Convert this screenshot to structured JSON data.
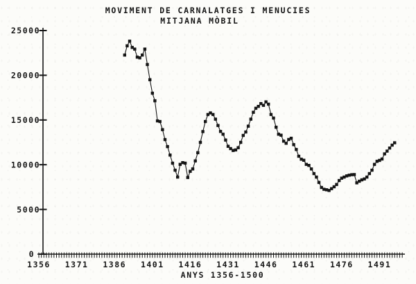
{
  "page": {
    "background": "#fcfcf9",
    "ink": "#161616"
  },
  "chart_data": {
    "type": "line",
    "title": "MOVIMENT DE CARNALATGES I MENUCIES",
    "subtitle": "MITJANA MÒBIL",
    "xlabel": "ANYS 1356-1500",
    "ylabel": "",
    "xlim": [
      1356,
      1500
    ],
    "ylim": [
      0,
      25000
    ],
    "grid": false,
    "legend": "none",
    "marker": "filled-square",
    "y_ticks": [
      0,
      5000,
      10000,
      15000,
      20000,
      25000
    ],
    "y_tick_labels": [
      "0",
      "5000",
      "10000",
      "15000",
      "20000",
      "25000"
    ],
    "x_tick_label_years": [
      1356,
      1371,
      1386,
      1401,
      1416,
      1431,
      1446,
      1461,
      1476,
      1491
    ],
    "x_tick_labels": [
      "1356",
      "1371",
      "1386",
      "1401",
      "1416",
      "1431",
      "1446",
      "1461",
      "1476",
      "1491"
    ],
    "x_minor_tick_step_years": 1,
    "series": [
      {
        "name": "mitjana mòbil",
        "x_start_year": 1390,
        "x_step_years": 1,
        "values": [
          22260,
          23290,
          23810,
          23110,
          22930,
          22030,
          21950,
          22260,
          22930,
          21200,
          19500,
          18000,
          17150,
          14900,
          14830,
          13920,
          12810,
          12030,
          11080,
          10170,
          9390,
          8620,
          10040,
          10230,
          10170,
          8570,
          9260,
          9530,
          10430,
          11340,
          12500,
          13700,
          14830,
          15610,
          15790,
          15610,
          15090,
          14390,
          13720,
          13410,
          12760,
          12060,
          11800,
          11590,
          11650,
          11900,
          12500,
          13280,
          13660,
          14310,
          15090,
          15860,
          16310,
          16520,
          16830,
          16640,
          17030,
          16770,
          15610,
          15220,
          14190,
          13410,
          13300,
          12630,
          12400,
          12820,
          12960,
          12240,
          11700,
          10950,
          10610,
          10500,
          10040,
          9920,
          9530,
          9010,
          8620,
          8020,
          7450,
          7250,
          7200,
          7120,
          7320,
          7530,
          7790,
          8230,
          8490,
          8620,
          8750,
          8830,
          8880,
          8900,
          7970,
          8150,
          8310,
          8410,
          8620,
          9010,
          9390,
          10040,
          10380,
          10480,
          10640,
          11210,
          11520,
          11860,
          12190,
          12450
        ]
      }
    ]
  }
}
